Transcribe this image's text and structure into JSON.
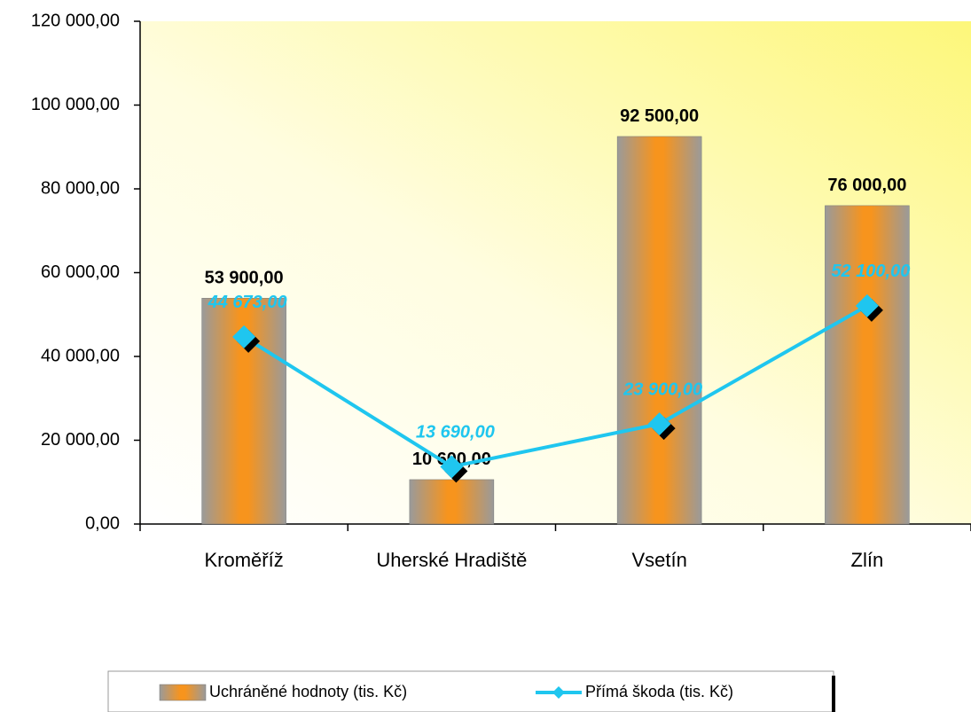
{
  "chart_data": {
    "type": "bar",
    "categories": [
      "Kroměříž",
      "Uherské Hradiště",
      "Vsetín",
      "Zlín"
    ],
    "series": [
      {
        "name": "Uchráněné hodnoty (tis. Kč)",
        "type": "bar",
        "color": "#f7941d",
        "values": [
          53900,
          10600,
          92500,
          76000
        ],
        "value_labels": [
          "53 900,00",
          "10 600,00",
          "92 500,00",
          "76 000,00"
        ]
      },
      {
        "name": "Přímá škoda (tis. Kč)",
        "type": "line",
        "color": "#1fc6ef",
        "values": [
          44673,
          13690,
          23900,
          52100
        ],
        "value_labels": [
          "44 673,00",
          "13 690,00",
          "23 900,00",
          "52 100,00"
        ]
      }
    ],
    "ylim": [
      0,
      120000
    ],
    "yticks": [
      {
        "value": 0,
        "label": "0,00"
      },
      {
        "value": 20000,
        "label": "20 000,00"
      },
      {
        "value": 40000,
        "label": "40 000,00"
      },
      {
        "value": 60000,
        "label": "60 000,00"
      },
      {
        "value": 80000,
        "label": "80 000,00"
      },
      {
        "value": 100000,
        "label": "100 000,00"
      },
      {
        "value": 120000,
        "label": "120 000,00"
      }
    ],
    "legend": "bottom"
  }
}
